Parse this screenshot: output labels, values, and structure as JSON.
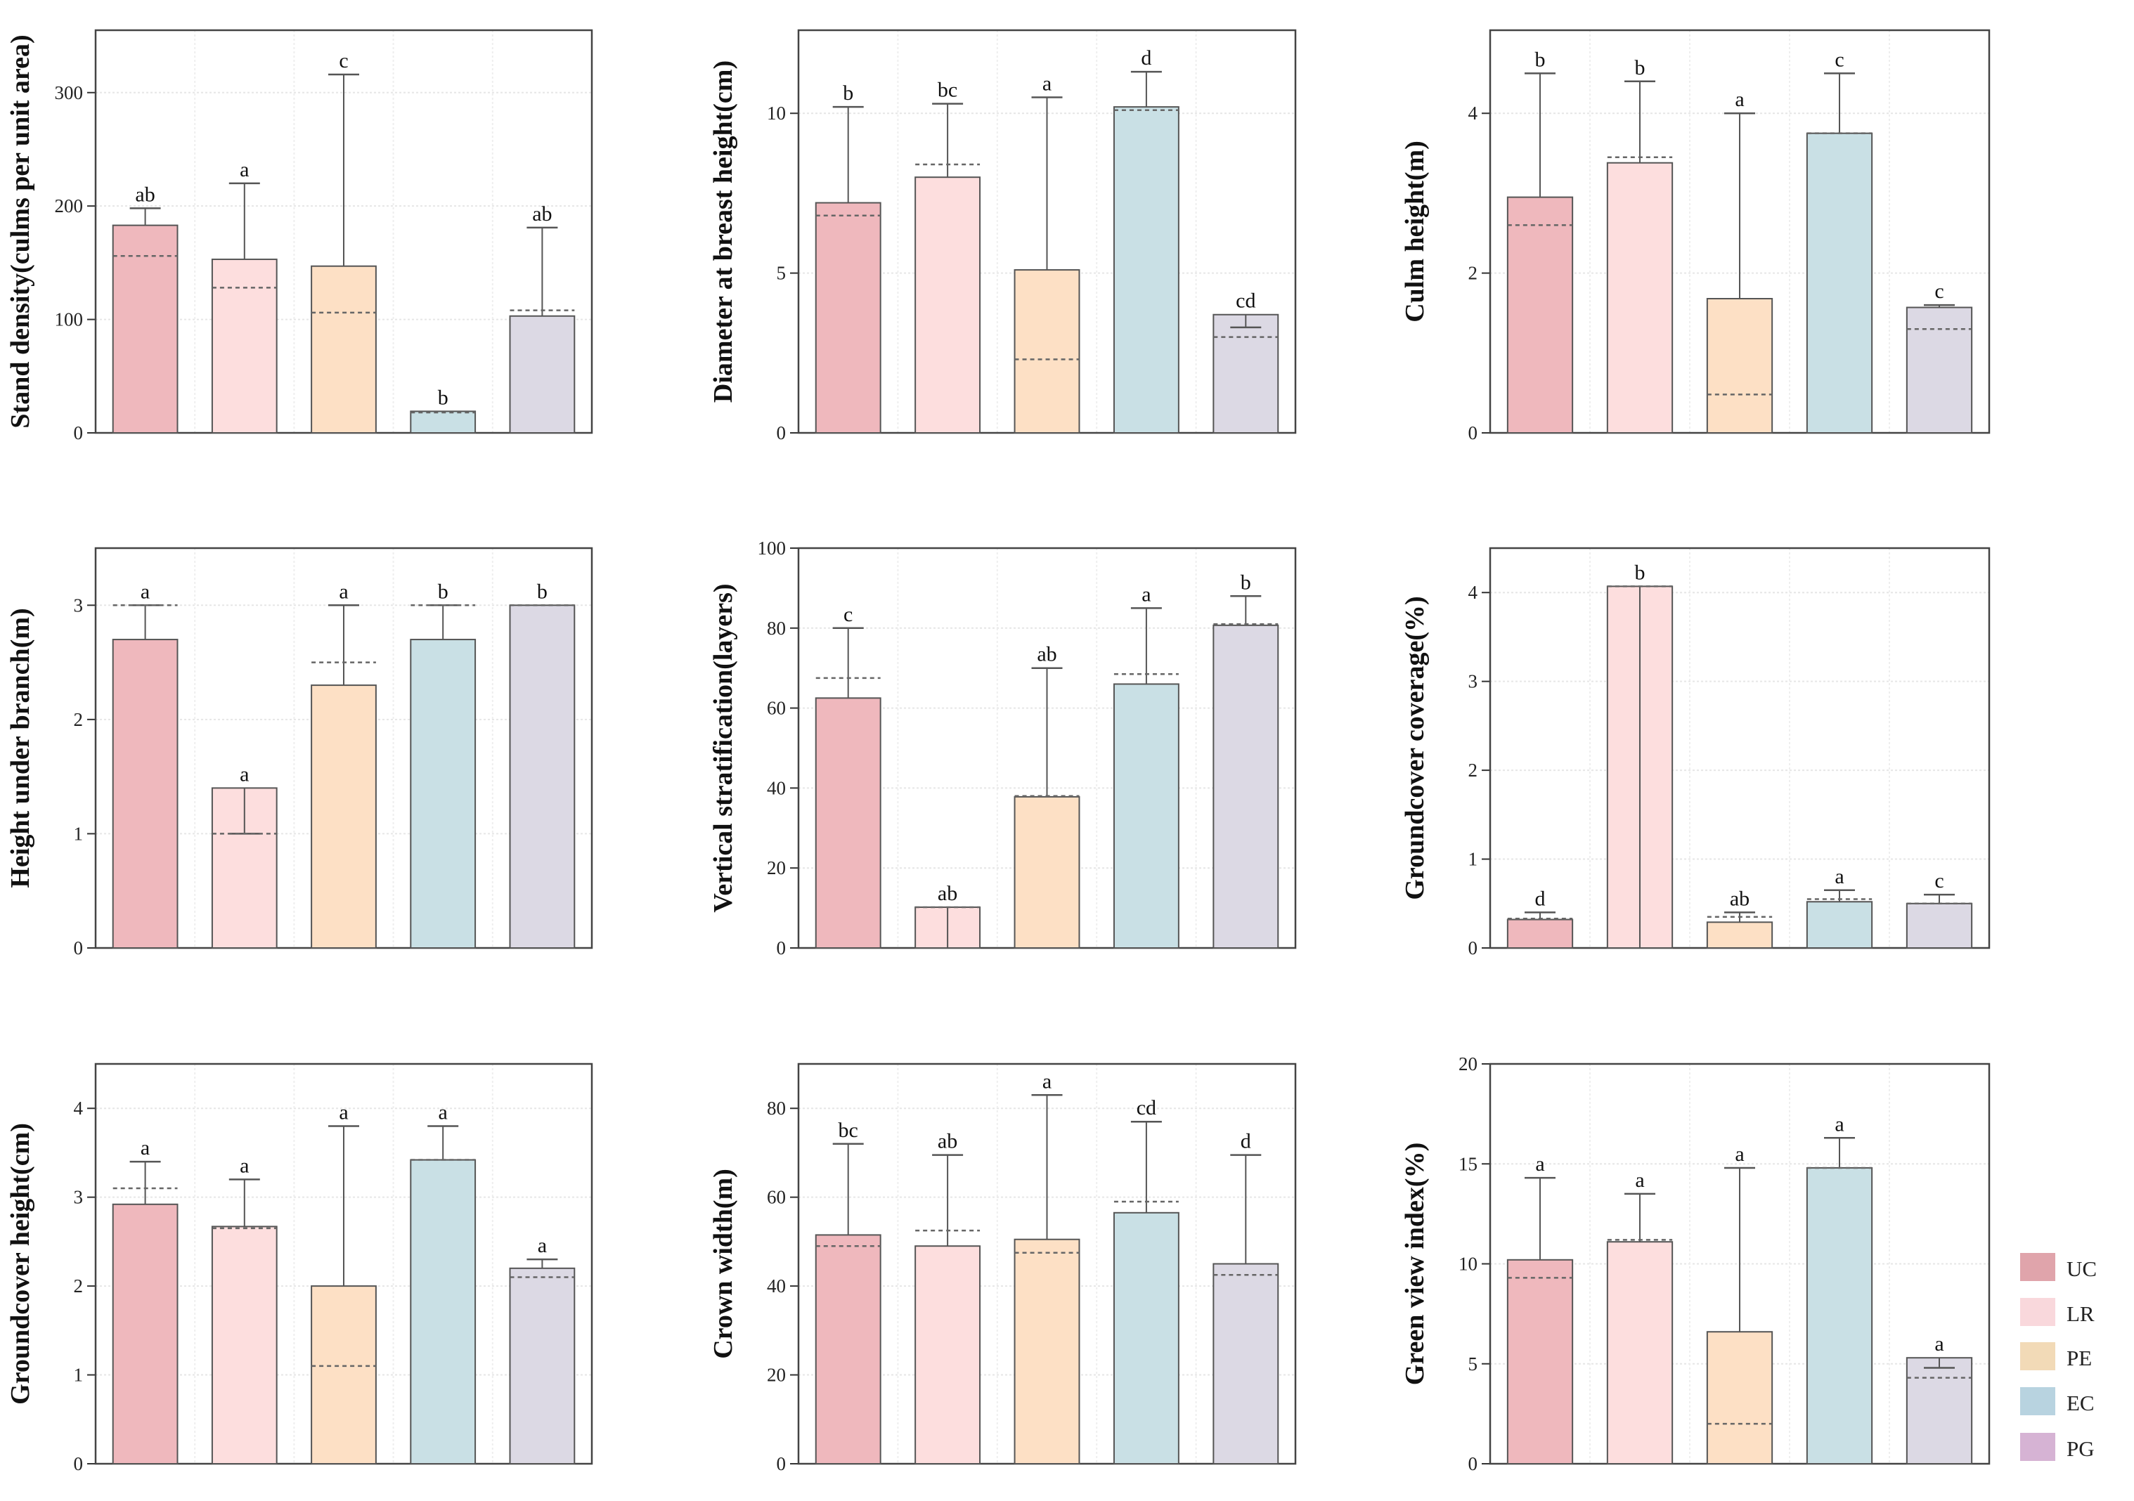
{
  "legend": [
    {
      "label": "UC",
      "color": "#e0a4ab"
    },
    {
      "label": "LR",
      "color": "#f9d8dc"
    },
    {
      "label": "PE",
      "color": "#f2dab7"
    },
    {
      "label": "EC",
      "color": "#b8d3e0"
    },
    {
      "label": "PG",
      "color": "#d6b3d4"
    }
  ],
  "bar_colors": [
    "#efb8bd",
    "#fddede",
    "#fde0c5",
    "#c9e0e5",
    "#dcd9e4"
  ],
  "chart_data": [
    {
      "type": "bar",
      "ylabel": "Stand density(culms per unit area)",
      "ylim": [
        0,
        355
      ],
      "yticks": [
        0,
        100,
        200,
        300
      ],
      "categories": [
        "UC",
        "LR",
        "PE",
        "EC",
        "PG"
      ],
      "values": [
        183,
        153,
        147,
        19,
        103
      ],
      "err_high": [
        198,
        220,
        316,
        null,
        181
      ],
      "err_low": [
        null,
        null,
        null,
        null,
        null
      ],
      "dashed": [
        156,
        128,
        106,
        18,
        108
      ],
      "letters": [
        "ab",
        "a",
        "c",
        "b",
        "ab"
      ]
    },
    {
      "type": "bar",
      "ylabel": "Diameter at breast height(cm)",
      "ylim": [
        0,
        12.6
      ],
      "yticks": [
        0,
        5,
        10
      ],
      "categories": [
        "UC",
        "LR",
        "PE",
        "EC",
        "PG"
      ],
      "values": [
        7.2,
        8.0,
        5.1,
        10.2,
        3.7
      ],
      "err_high": [
        10.2,
        10.3,
        10.5,
        11.3,
        null
      ],
      "err_low": [
        null,
        null,
        null,
        null,
        3.3
      ],
      "dashed": [
        6.8,
        8.4,
        2.3,
        10.1,
        3.0
      ],
      "letters": [
        "b",
        "bc",
        "a",
        "d",
        "cd"
      ]
    },
    {
      "type": "bar",
      "ylabel": "Culm height(m)",
      "ylim": [
        0,
        5.04
      ],
      "yticks": [
        0,
        2,
        4
      ],
      "categories": [
        "UC",
        "LR",
        "PE",
        "EC",
        "PG"
      ],
      "values": [
        2.95,
        3.38,
        1.68,
        3.75,
        1.57
      ],
      "err_high": [
        4.5,
        4.4,
        4.0,
        4.5,
        1.6
      ],
      "err_low": [
        null,
        null,
        null,
        null,
        null
      ],
      "dashed": [
        2.6,
        3.45,
        0.48,
        3.75,
        1.3
      ],
      "letters": [
        "b",
        "b",
        "a",
        "c",
        "c"
      ]
    },
    {
      "type": "bar",
      "ylabel": "Height under branch(m)",
      "ylim": [
        0,
        3.5
      ],
      "yticks": [
        0,
        1,
        2,
        3
      ],
      "categories": [
        "UC",
        "LR",
        "PE",
        "EC",
        "PG"
      ],
      "values": [
        2.7,
        1.4,
        2.3,
        2.7,
        3.0
      ],
      "err_high": [
        3.0,
        null,
        3.0,
        3.0,
        null
      ],
      "err_low": [
        null,
        1.0,
        null,
        null,
        null
      ],
      "dashed": [
        3.0,
        1.0,
        2.5,
        3.0,
        3.0
      ],
      "letters": [
        "a",
        "a",
        "a",
        "b",
        "b"
      ]
    },
    {
      "type": "bar",
      "ylabel": "Vertical stratification(layers)",
      "ylim": [
        0,
        100
      ],
      "yticks": [
        0,
        20,
        40,
        60,
        80,
        100
      ],
      "categories": [
        "UC",
        "LR",
        "PE",
        "EC",
        "PG"
      ],
      "values": [
        62.5,
        10.2,
        37.8,
        66,
        80.7
      ],
      "err_high": [
        80,
        null,
        70,
        85,
        88
      ],
      "err_low": [
        null,
        0,
        null,
        null,
        null
      ],
      "dashed": [
        67.5,
        10.2,
        38,
        68.5,
        81
      ],
      "letters": [
        "c",
        "ab",
        "ab",
        "a",
        "b"
      ]
    },
    {
      "type": "bar",
      "ylabel": "Groundcover coverage(%)",
      "ylim": [
        0,
        4.5
      ],
      "yticks": [
        0,
        1,
        2,
        3,
        4
      ],
      "categories": [
        "UC",
        "LR",
        "PE",
        "EC",
        "PG"
      ],
      "values": [
        0.32,
        4.07,
        0.29,
        0.52,
        0.5
      ],
      "err_high": [
        0.4,
        null,
        0.4,
        0.65,
        0.6
      ],
      "err_low": [
        null,
        0,
        null,
        null,
        null
      ],
      "dashed": [
        0.33,
        4.07,
        0.35,
        0.55,
        0.5
      ],
      "letters": [
        "d",
        "b",
        "ab",
        "a",
        "c"
      ]
    },
    {
      "type": "bar",
      "ylabel": "Groundcover height(cm)",
      "ylim": [
        0,
        4.5
      ],
      "yticks": [
        0,
        1,
        2,
        3,
        4
      ],
      "categories": [
        "UC",
        "LR",
        "PE",
        "EC",
        "PG"
      ],
      "values": [
        2.92,
        2.67,
        2.0,
        3.42,
        2.2
      ],
      "err_high": [
        3.4,
        3.2,
        3.8,
        3.8,
        2.3
      ],
      "err_low": [
        null,
        null,
        null,
        null,
        null
      ],
      "dashed": [
        3.1,
        2.65,
        1.1,
        3.42,
        2.1
      ],
      "letters": [
        "a",
        "a",
        "a",
        "a",
        "a"
      ]
    },
    {
      "type": "bar",
      "ylabel": "Crown width(m)",
      "ylim": [
        0,
        90
      ],
      "yticks": [
        0,
        20,
        40,
        60,
        80
      ],
      "categories": [
        "UC",
        "LR",
        "PE",
        "EC",
        "PG"
      ],
      "values": [
        51.5,
        49,
        50.5,
        56.5,
        45
      ],
      "err_high": [
        72,
        69.5,
        83,
        77,
        69.5
      ],
      "err_low": [
        null,
        null,
        null,
        null,
        null
      ],
      "dashed": [
        49,
        52.5,
        47.5,
        59,
        42.5
      ],
      "letters": [
        "bc",
        "ab",
        "a",
        "cd",
        "d"
      ]
    },
    {
      "type": "bar",
      "ylabel": "Green view index(%)",
      "ylim": [
        0,
        20
      ],
      "yticks": [
        0,
        5,
        10,
        15,
        20
      ],
      "categories": [
        "UC",
        "LR",
        "PE",
        "EC",
        "PG"
      ],
      "values": [
        10.2,
        11.1,
        6.6,
        14.8,
        5.3
      ],
      "err_high": [
        14.3,
        13.5,
        14.8,
        16.3,
        null
      ],
      "err_low": [
        null,
        null,
        null,
        null,
        4.8
      ],
      "dashed": [
        9.3,
        11.2,
        2.0,
        14.8,
        4.3
      ],
      "letters": [
        "a",
        "a",
        "a",
        "a",
        "a"
      ]
    }
  ]
}
